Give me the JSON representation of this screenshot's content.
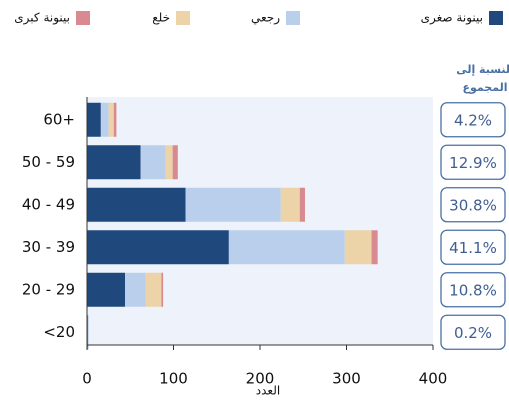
{
  "chart_data": {
    "type": "stacked-barh",
    "categories": [
      "60+",
      "50 - 59",
      "40 - 49",
      "30 - 39",
      "20 - 29",
      "<20"
    ],
    "series": [
      {
        "name": "بينونة صغرى",
        "color": "#1f497d",
        "values": [
          16,
          62,
          114,
          164,
          44,
          1
        ]
      },
      {
        "name": "رجعي",
        "color": "#b9cfec",
        "values": [
          9,
          29,
          110,
          134,
          24,
          1
        ]
      },
      {
        "name": "خلع",
        "color": "#ecd3a8",
        "values": [
          6,
          8,
          22,
          31,
          18,
          0
        ]
      },
      {
        "name": "بينونة كبرى",
        "color": "#d98a90",
        "values": [
          3,
          6,
          6,
          7,
          2,
          0
        ]
      }
    ],
    "xlabel": "العدد",
    "xlim": [
      0,
      400
    ],
    "xticks": [
      0,
      100,
      200,
      300,
      400
    ],
    "share_title": [
      "النسبة إلى",
      "المجموع"
    ],
    "shares": [
      "4.2%",
      "12.9%",
      "30.8%",
      "41.1%",
      "10.8%",
      "0.2%"
    ]
  }
}
